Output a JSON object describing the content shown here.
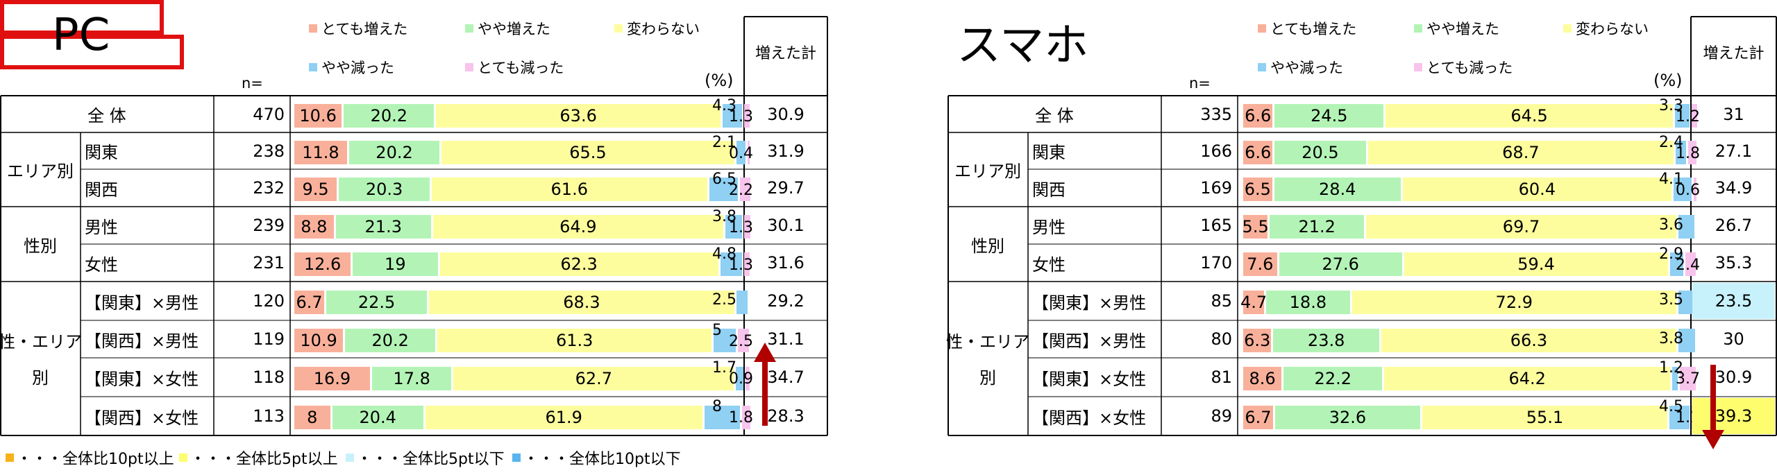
{
  "colors": {
    "very_increased": "#f9b09a",
    "slightly_increased": "#b3f4b6",
    "unchanged": "#fdfd9e",
    "slightly_decreased": "#8fd0f3",
    "very_decreased": "#f7c4ec",
    "highlight_box": "#e01010",
    "arrow": "#b00000",
    "hl_up10": "#f7b21a",
    "hl_up5": "#fdfd6e",
    "hl_down5": "#c8f2fb",
    "hl_down10": "#5ab4ee"
  },
  "legend": {
    "very_increased": "とても増えた",
    "slightly_increased": "やや増えた",
    "unchanged": "変わらない",
    "slightly_decreased": "やや減った",
    "very_decreased": "とても減った"
  },
  "common": {
    "n_label": "n=",
    "pct_label": "(%)",
    "total_header": "増えた計"
  },
  "footer": [
    {
      "key": "hl_up10",
      "text": "・・・全体比10pt以上"
    },
    {
      "key": "hl_up5",
      "text": "・・・全体比5pt以上"
    },
    {
      "key": "hl_down5",
      "text": "・・・全体比5pt以下"
    },
    {
      "key": "hl_down10",
      "text": "・・・全体比10pt以下"
    }
  ],
  "group_labels": {
    "area": "エリア別",
    "gender": "性別",
    "cross_1": "性・エリア",
    "cross_2": "別"
  },
  "chart_data": [
    {
      "type": "bar",
      "title": "PC",
      "stacked": true,
      "orientation": "horizontal",
      "categories": [
        "全 体",
        "関東",
        "関西",
        "男性",
        "女性",
        "【関東】×男性",
        "【関西】×男性",
        "【関東】×女性",
        "【関西】×女性"
      ],
      "n": [
        470,
        238,
        232,
        239,
        231,
        120,
        119,
        118,
        113
      ],
      "series": [
        {
          "name": "とても増えた",
          "values": [
            10.6,
            11.8,
            9.5,
            8.8,
            12.6,
            6.7,
            10.9,
            16.9,
            8.0
          ]
        },
        {
          "name": "やや増えた",
          "values": [
            20.2,
            20.2,
            20.3,
            21.3,
            19.0,
            22.5,
            20.2,
            17.8,
            20.4
          ]
        },
        {
          "name": "変わらない",
          "values": [
            63.6,
            65.5,
            61.6,
            64.9,
            62.3,
            68.3,
            61.3,
            62.7,
            61.9
          ]
        },
        {
          "name": "やや減った",
          "values": [
            4.3,
            2.1,
            6.5,
            3.8,
            4.8,
            2.5,
            5.0,
            1.7,
            8.0
          ]
        },
        {
          "name": "とても減った",
          "values": [
            1.3,
            0.4,
            2.2,
            1.3,
            1.3,
            0.0,
            2.5,
            0.9,
            1.8
          ]
        }
      ],
      "increase_total": [
        30.9,
        31.9,
        29.7,
        30.1,
        31.6,
        29.2,
        31.1,
        34.7,
        28.3
      ],
      "xlim": [
        0,
        100
      ],
      "highlighted_row": 7,
      "highlighted_segments": [
        "とても増えた",
        "やや増えた"
      ],
      "arrow": "up",
      "arrow_row": 7
    },
    {
      "type": "bar",
      "title": "スマホ",
      "stacked": true,
      "orientation": "horizontal",
      "categories": [
        "全 体",
        "関東",
        "関西",
        "男性",
        "女性",
        "【関東】×男性",
        "【関西】×男性",
        "【関東】×女性",
        "【関西】×女性"
      ],
      "n": [
        335,
        166,
        169,
        165,
        170,
        85,
        80,
        81,
        89
      ],
      "series": [
        {
          "name": "とても増えた",
          "values": [
            6.6,
            6.6,
            6.5,
            5.5,
            7.6,
            4.7,
            6.3,
            8.6,
            6.7
          ]
        },
        {
          "name": "やや増えた",
          "values": [
            24.5,
            20.5,
            28.4,
            21.2,
            27.6,
            18.8,
            23.8,
            22.2,
            32.6
          ]
        },
        {
          "name": "変わらない",
          "values": [
            64.5,
            68.7,
            60.4,
            69.7,
            59.4,
            72.9,
            66.3,
            64.2,
            55.1
          ]
        },
        {
          "name": "やや減った",
          "values": [
            3.3,
            2.4,
            4.1,
            3.6,
            2.9,
            3.5,
            3.8,
            1.2,
            4.5
          ]
        },
        {
          "name": "とても減った",
          "values": [
            1.2,
            1.8,
            0.6,
            0.0,
            2.4,
            0.0,
            0.0,
            3.7,
            1.1
          ]
        }
      ],
      "increase_total": [
        31.0,
        27.1,
        34.9,
        26.7,
        35.3,
        23.5,
        30.0,
        30.9,
        39.3
      ],
      "total_highlight": {
        "5": "hl_down5",
        "8": "hl_up5"
      },
      "xlim": [
        0,
        100
      ],
      "highlighted_row": 8,
      "highlighted_segments": [
        "とても増えた",
        "やや増えた"
      ],
      "arrow": "down",
      "arrow_row": 7
    }
  ]
}
